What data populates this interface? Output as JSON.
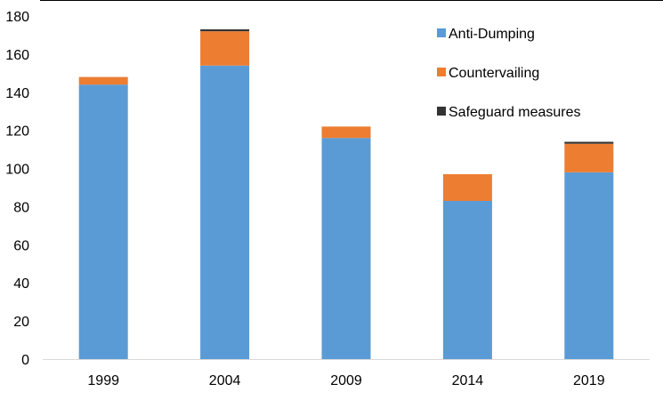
{
  "chart_data": {
    "type": "bar",
    "stacked": true,
    "categories": [
      "1999",
      "2004",
      "2009",
      "2014",
      "2019"
    ],
    "series": [
      {
        "name": "Anti-Dumping",
        "values": [
          144,
          154,
          116,
          83,
          98
        ],
        "color": "#5B9BD5"
      },
      {
        "name": "Countervailing",
        "values": [
          4,
          18,
          6,
          14,
          15
        ],
        "color": "#ED7D31"
      },
      {
        "name": "Safeguard measures",
        "values": [
          0,
          1,
          0,
          0,
          1
        ],
        "color": "#333333"
      }
    ],
    "title": "",
    "xlabel": "",
    "ylabel": "",
    "ylim": [
      0,
      180
    ],
    "yticks": [
      0,
      20,
      40,
      60,
      80,
      100,
      120,
      140,
      160,
      180
    ],
    "grid": false,
    "legend_position": "top-right"
  }
}
